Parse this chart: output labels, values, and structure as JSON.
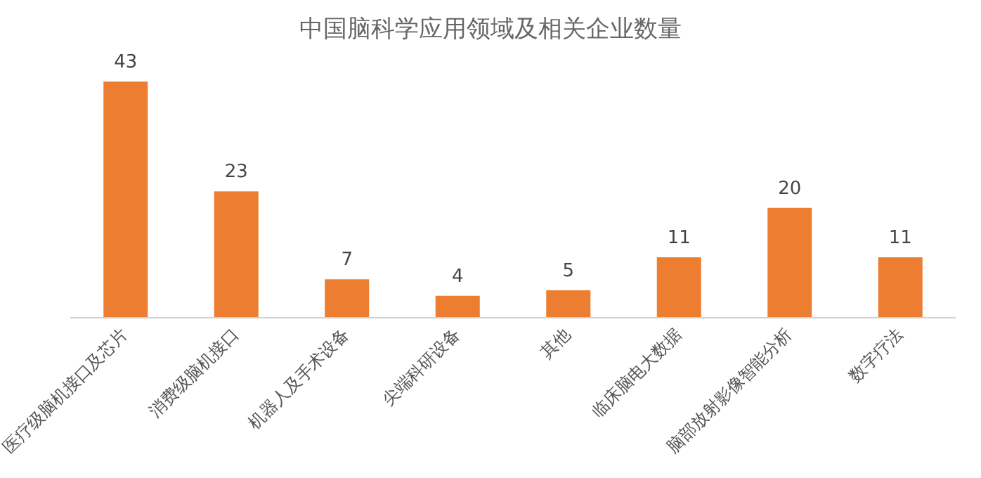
{
  "chart_data": {
    "type": "bar",
    "title": "中国脑科学应用领域及相关企业数量",
    "categories": [
      "医疗级脑机接口及芯片",
      "消费级脑机接口",
      "机器人及手术设备",
      "尖端科研设备",
      "其他",
      "临床脑电大数据",
      "脑部放射影像智能分析",
      "数字疗法"
    ],
    "values": [
      43,
      23,
      7,
      4,
      5,
      11,
      20,
      11
    ],
    "color": "#ed7d31",
    "data_labels": true
  }
}
